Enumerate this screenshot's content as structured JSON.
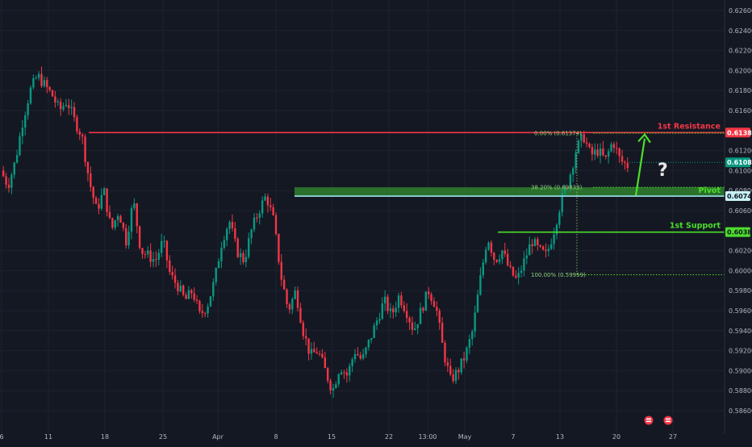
{
  "chart_data": {
    "type": "candlestick",
    "symbol_note": "",
    "ylim": [
      0.584,
      0.628
    ],
    "y_ticks": [
      "0.62600",
      "0.62400",
      "0.62200",
      "0.62000",
      "0.61800",
      "0.61600",
      "0.61200",
      "0.61000",
      "0.60800",
      "0.60600",
      "0.60200",
      "0.60000",
      "0.59800",
      "0.59600",
      "0.59400",
      "0.59200",
      "0.59000",
      "0.58800",
      "0.58600"
    ],
    "y_tick_values": [
      0.626,
      0.624,
      0.622,
      0.62,
      0.618,
      0.616,
      0.612,
      0.61,
      0.608,
      0.606,
      0.602,
      0.6,
      0.598,
      0.596,
      0.594,
      0.592,
      0.59,
      0.588,
      0.586
    ],
    "x_ticks": [
      "6",
      "11",
      "18",
      "25",
      "Apr",
      "8",
      "15",
      "22",
      "13:00",
      "May",
      "7",
      "13",
      "20",
      "27"
    ],
    "close_path": [
      0.61,
      0.6085,
      0.611,
      0.615,
      0.618,
      0.6195,
      0.6185,
      0.6175,
      0.616,
      0.617,
      0.615,
      0.6135,
      0.609,
      0.606,
      0.608,
      0.604,
      0.606,
      0.603,
      0.607,
      0.602,
      0.6015,
      0.601,
      0.603,
      0.5995,
      0.5985,
      0.597,
      0.598,
      0.5955,
      0.5965,
      0.599,
      0.603,
      0.605,
      0.602,
      0.601,
      0.604,
      0.606,
      0.6075,
      0.605,
      0.5995,
      0.596,
      0.598,
      0.594,
      0.5915,
      0.592,
      0.59,
      0.588,
      0.5905,
      0.5895,
      0.592,
      0.591,
      0.593,
      0.595,
      0.597,
      0.5955,
      0.5975,
      0.596,
      0.594,
      0.596,
      0.598,
      0.5965,
      0.592,
      0.589,
      0.59,
      0.5915,
      0.594,
      0.599,
      0.6035,
      0.601,
      0.602,
      0.6,
      0.599,
      0.601,
      0.603,
      0.602,
      0.6015,
      0.604,
      0.607,
      0.609,
      0.612,
      0.6135,
      0.6115,
      0.612,
      0.611,
      0.613,
      0.611,
      0.6105
    ],
    "levels": [
      {
        "name": "1st Resistance",
        "price_label": "0.61380",
        "value": 0.6138,
        "color": "#f23645"
      },
      {
        "name": "Pivot",
        "price_label": "0.60745",
        "value": 0.60745,
        "color": "#9be3ef"
      },
      {
        "name": "1st Support",
        "price_label": "0.60385",
        "value": 0.60385,
        "color": "#4cde2b"
      }
    ],
    "current_price": {
      "label": "0.61082",
      "value": 0.61082,
      "color": "#089981"
    },
    "fib_labels": [
      {
        "text": "0.00% (0.61374)",
        "value": 0.61374
      },
      {
        "text": "38.20% (0.60833)",
        "value": 0.60833
      },
      {
        "text": "100.00% (0.59959)",
        "value": 0.59959
      }
    ],
    "annotation": "?",
    "colors": {
      "up": "#089981",
      "down": "#f23645",
      "background": "#141823",
      "grid": "#1e2230",
      "arrow": "#4cde2b",
      "pivot_zone": "#2d7a2d"
    }
  }
}
